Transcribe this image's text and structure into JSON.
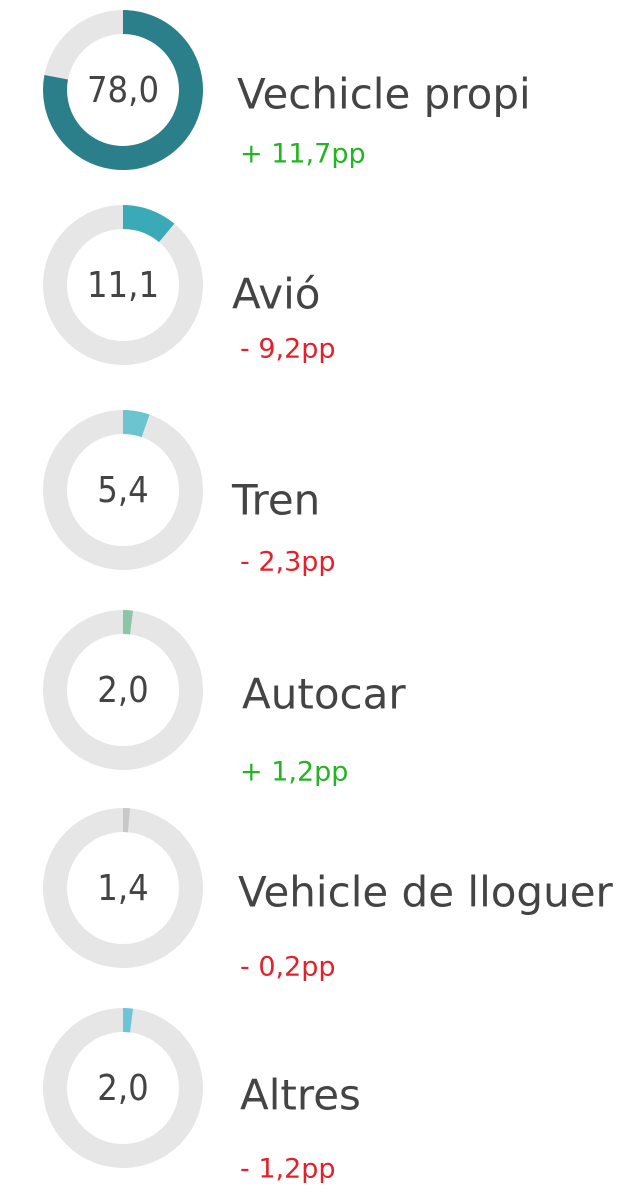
{
  "chart_data": [
    {
      "type": "donut",
      "title": "Vechicle propi",
      "subtitle": "+ 11,7pp",
      "subtitle_color": "#22b422",
      "values": [
        78.0
      ],
      "value_labels": [
        "78,0"
      ],
      "color": "#2b7f8b"
    },
    {
      "type": "donut",
      "title": "Avió",
      "subtitle": "- 9,2pp",
      "subtitle_color": "#e5202a",
      "values": [
        11.1
      ],
      "value_labels": [
        "11,1"
      ],
      "color": "#3aa9b8"
    },
    {
      "type": "donut",
      "title": "Tren",
      "subtitle": "- 2,3pp",
      "subtitle_color": "#e5202a",
      "values": [
        5.4
      ],
      "value_labels": [
        "5,4"
      ],
      "color": "#6cc4d0"
    },
    {
      "type": "donut",
      "title": "Autocar",
      "subtitle": "+ 1,2pp",
      "subtitle_color": "#22b422",
      "values": [
        2.0
      ],
      "value_labels": [
        "2,0"
      ],
      "color": "#8cc4a6"
    },
    {
      "type": "donut",
      "title": "Vehicle de lloguer",
      "subtitle": "- 0,2pp",
      "subtitle_color": "#e5202a",
      "values": [
        1.4
      ],
      "value_labels": [
        "1,4"
      ],
      "color": "#c8c8c8"
    },
    {
      "type": "donut",
      "title": "Altres",
      "subtitle": "- 1,2pp",
      "subtitle_color": "#e5202a",
      "values": [
        2.0
      ],
      "value_labels": [
        "2,0"
      ],
      "color": "#6cc4d8"
    }
  ]
}
